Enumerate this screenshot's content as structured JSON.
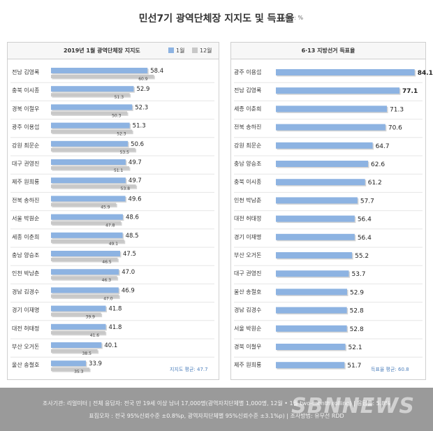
{
  "header": {
    "title": "민선7기 광역단체장 지지도 및 득표율",
    "unit": "단위 : %"
  },
  "left_panel": {
    "title": "2019년 1월 광역단체장 지지도",
    "legend_jan": "1월",
    "legend_dec": "12월",
    "average_note": "지지도 평균: 47.7"
  },
  "right_panel": {
    "title": "6·13 지방선거 득표율",
    "average_note": "득표율 평균: 60.8"
  },
  "colors": {
    "jan_bar": "#8db3e2",
    "dec_bar": "#c8c8c8",
    "vote_bar": "#8db3e2",
    "note_text": "#4f81bd"
  },
  "chart_data": [
    {
      "type": "bar",
      "orientation": "horizontal",
      "title": "2019년 1월 광역단체장 지지도",
      "categories": [
        "전남 김영록",
        "충북 이시종",
        "경북 이철우",
        "광주 이용섭",
        "강원 최문순",
        "대구 권영진",
        "제주 원희룡",
        "전북 송하진",
        "서울 박원순",
        "세종 이춘희",
        "충남 양승조",
        "인천 박남춘",
        "경남 김경수",
        "경기 이재명",
        "대전 허태정",
        "부산 오거돈",
        "울산 송철호"
      ],
      "series": [
        {
          "name": "1월",
          "values": [
            58.4,
            52.9,
            52.3,
            51.3,
            50.6,
            49.7,
            49.7,
            49.6,
            48.6,
            48.5,
            47.5,
            47.0,
            46.9,
            41.8,
            41.8,
            40.1,
            33.9
          ]
        },
        {
          "name": "12월",
          "values": [
            60.9,
            51.3,
            50.3,
            52.3,
            53.5,
            51.1,
            53.8,
            45.9,
            47.8,
            49.1,
            46.5,
            46.3,
            47.0,
            39.9,
            41.6,
            38.5,
            35.3
          ]
        }
      ],
      "annotation": "지지도 평균: 47.7"
    },
    {
      "type": "bar",
      "orientation": "horizontal",
      "title": "6·13 지방선거 득표율",
      "categories": [
        "광주 이용섭",
        "전남 김영록",
        "세종 이춘희",
        "전북 송하진",
        "강원 최문순",
        "충남 양승조",
        "충북 이시종",
        "인천 박남춘",
        "대전 허태정",
        "경기 이재명",
        "부산 오거돈",
        "대구 권영진",
        "울산 송철호",
        "경남 김경수",
        "서울 박원순",
        "경북 이철우",
        "제주 원희룡"
      ],
      "values": [
        84.1,
        77.1,
        71.3,
        70.6,
        64.7,
        62.6,
        61.2,
        57.7,
        56.4,
        56.4,
        55.2,
        53.7,
        52.9,
        52.8,
        52.8,
        52.1,
        51.7
      ],
      "annotation": "득표율 평균: 60.8"
    }
  ],
  "footer": {
    "line1": "조사기관: 리얼미터 | 전체 응답자: 전국 만 19세 이상 남녀 17,000명(광역자치단체별 1,000명, 12월 • 1월 two-month rolling) | 응답률: 5.8%",
    "line2": "표집오차 : 전국 95%신뢰수준 ±0.8%p, 광역자치단체별 95%신뢰수준 ±3.1%p) | 조사방법: 유무선 RDD",
    "watermark": "SBNNEWS"
  }
}
